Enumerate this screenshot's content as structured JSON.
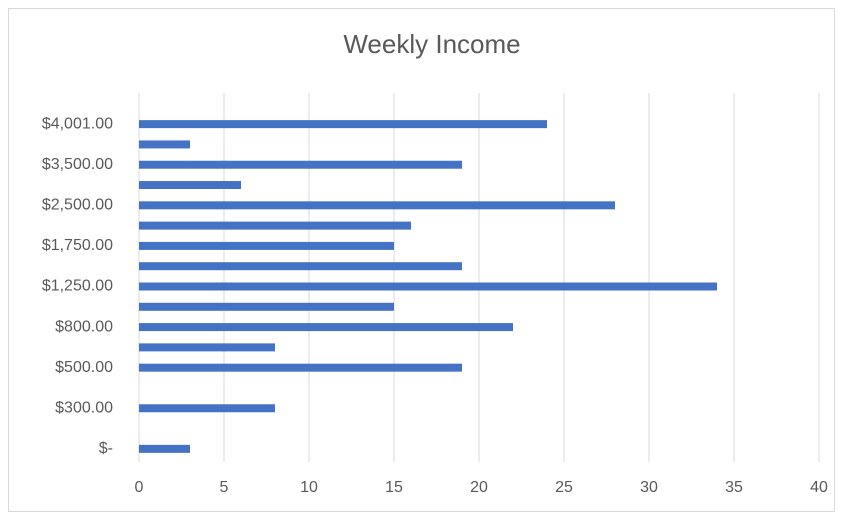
{
  "chart_data": {
    "type": "hbar",
    "title": "Weekly Income",
    "categories": [
      "$-",
      null,
      "$300.00",
      null,
      "$500.00",
      null,
      "$800.00",
      null,
      "$1,250.00",
      null,
      "$1,750.00",
      null,
      "$2,500.00",
      null,
      "$3,500.00",
      null,
      "$4,001.00"
    ],
    "values": [
      3,
      null,
      8,
      null,
      19,
      8,
      22,
      15,
      34,
      19,
      15,
      16,
      28,
      6,
      19,
      3,
      24
    ],
    "color": "#4472c4",
    "xlim": [
      0,
      40
    ],
    "xticks": [
      0,
      5,
      10,
      15,
      20,
      25,
      30,
      35,
      40
    ],
    "grid": true
  }
}
